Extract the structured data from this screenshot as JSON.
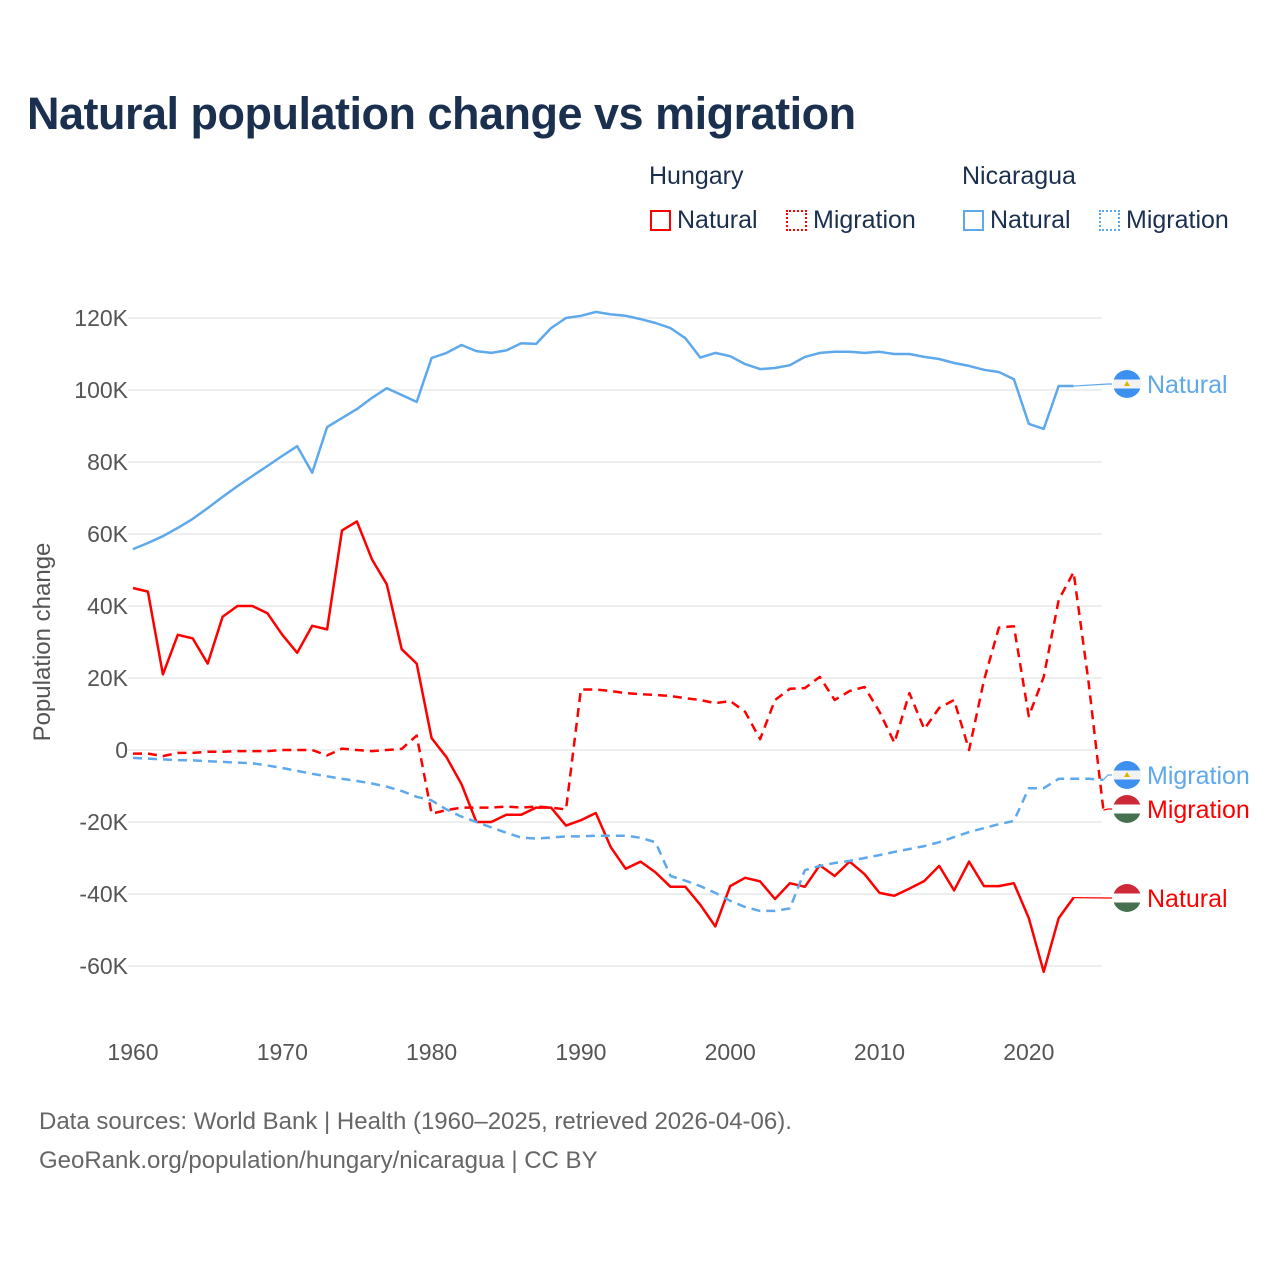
{
  "title": "Natural population change vs migration",
  "legend": {
    "groups": [
      {
        "name": "Hungary",
        "items": [
          "Natural",
          "Migration"
        ],
        "color": "#ff0000"
      },
      {
        "name": "Nicaragua",
        "items": [
          "Natural",
          "Migration"
        ],
        "color": "#5ea8ec"
      }
    ]
  },
  "footer": {
    "line1": "Data sources: World Bank | Health (1960–2025, retrieved 2026-04-06).",
    "line2": "GeoRank.org/population/hungary/nicaragua | CC BY"
  },
  "chart_data": {
    "type": "line",
    "title": "Natural population change vs migration",
    "xlabel": "",
    "ylabel": "Population change",
    "xlim": [
      1960,
      2025
    ],
    "ylim": [
      -70000,
      125000
    ],
    "x_ticks": [
      "1960",
      "1970",
      "1980",
      "1990",
      "2000",
      "2010",
      "2020"
    ],
    "x_tick_values": [
      1960,
      1970,
      1980,
      1990,
      2000,
      2010,
      2020
    ],
    "y_ticks": [
      "120K",
      "100K",
      "80K",
      "60K",
      "40K",
      "20K",
      "0",
      "-20K",
      "-40K",
      "-60K"
    ],
    "y_tick_values": [
      120000,
      100000,
      80000,
      60000,
      40000,
      20000,
      0,
      -20000,
      -40000,
      -60000
    ],
    "grid": true,
    "series": [
      {
        "name": "Hungary Natural",
        "label": "Natural",
        "country": "Hungary",
        "color": "#ff0000",
        "dash": false,
        "start": 1960,
        "values": [
          45,
          44,
          21,
          32,
          31,
          24,
          37,
          40,
          40,
          38,
          32,
          27,
          34.5,
          33.5,
          61,
          63.5,
          53,
          46,
          28,
          24,
          3.3,
          -2,
          -9.5,
          -20,
          -20,
          -18,
          -18,
          -16,
          -16,
          -21,
          -19.5,
          -17.5,
          -27,
          -33,
          -31,
          -34,
          -38,
          -38,
          -43,
          -49,
          -37.8,
          -35.5,
          -36.5,
          -41.4,
          -37,
          -38,
          -32,
          -35,
          -31,
          -34.5,
          -39.7,
          -40.5,
          -38.5,
          -36.4,
          -32.2,
          -39,
          -31,
          -37.8,
          -37.8,
          -37,
          -46.7,
          -61.6,
          -46.7,
          -41
        ]
      },
      {
        "name": "Hungary Migration",
        "label": "Migration",
        "country": "Hungary",
        "color": "#ff0000",
        "dash": true,
        "start": 1960,
        "values": [
          -1,
          -1,
          -1.7,
          -0.8,
          -0.8,
          -0.5,
          -0.5,
          -0.3,
          -0.3,
          -0.3,
          0,
          0,
          0,
          -1.5,
          0.4,
          0,
          -0.3,
          0,
          0.3,
          4,
          -17.7,
          -16.7,
          -16,
          -16,
          -16,
          -15.7,
          -16,
          -15.7,
          -16,
          -16.5,
          16.8,
          16.8,
          16.4,
          15.8,
          15.5,
          15.3,
          15,
          14.4,
          13.9,
          13,
          13.6,
          10.6,
          3,
          13.9,
          17,
          17.2,
          20.3,
          13.9,
          16.4,
          17.5,
          10.6,
          2,
          15.8,
          5.8,
          11.7,
          13.9,
          0,
          19.4,
          34,
          34.4,
          9.4,
          20.3,
          41.7,
          49.4,
          19,
          -16.7
        ]
      },
      {
        "name": "Nicaragua Natural",
        "label": "Natural",
        "country": "Nicaragua",
        "color": "#5ea8ec",
        "dash": false,
        "start": 1960,
        "values": [
          55.8,
          57.5,
          59.4,
          61.7,
          64.2,
          67.2,
          70.3,
          73.3,
          76.1,
          78.9,
          81.7,
          84.4,
          77,
          89.7,
          92.2,
          94.7,
          97.8,
          100.5,
          98.6,
          96.7,
          108.9,
          110.3,
          112.5,
          110.8,
          110.3,
          111,
          113,
          112.8,
          117.2,
          120,
          120.6,
          121.7,
          121,
          120.6,
          119.7,
          118.6,
          117.2,
          114.4,
          109,
          110.3,
          109.4,
          107.2,
          105.8,
          106.1,
          106.9,
          109.2,
          110.3,
          110.6,
          110.6,
          110.3,
          110.6,
          110,
          110,
          109.2,
          108.6,
          107.5,
          106.7,
          105.6,
          105,
          103,
          90.6,
          89.2,
          101.1,
          101.1
        ]
      },
      {
        "name": "Nicaragua Migration",
        "label": "Migration",
        "country": "Nicaragua",
        "color": "#5ea8ec",
        "dash": true,
        "start": 1960,
        "values": [
          -2.2,
          -2.4,
          -2.6,
          -2.8,
          -2.9,
          -3.1,
          -3.3,
          -3.5,
          -3.7,
          -4.3,
          -5,
          -5.8,
          -6.6,
          -7.3,
          -8,
          -8.6,
          -9.3,
          -10.2,
          -11.4,
          -13,
          -14,
          -16.5,
          -18.5,
          -20,
          -21.5,
          -23,
          -24.3,
          -24.6,
          -24.3,
          -24,
          -24,
          -23.8,
          -23.8,
          -23.8,
          -24.4,
          -25.6,
          -35,
          -36.3,
          -37.8,
          -39.7,
          -41.9,
          -43.6,
          -44.7,
          -44.7,
          -44,
          -33.4,
          -32.2,
          -31.4,
          -30.8,
          -30,
          -29.2,
          -28.3,
          -27.5,
          -26.7,
          -25.6,
          -24.2,
          -22.8,
          -21.7,
          -20.6,
          -19.7,
          -10.6,
          -10.6,
          -8,
          -8,
          -8,
          -8.3
        ]
      }
    ],
    "value_unit": "thousands"
  }
}
